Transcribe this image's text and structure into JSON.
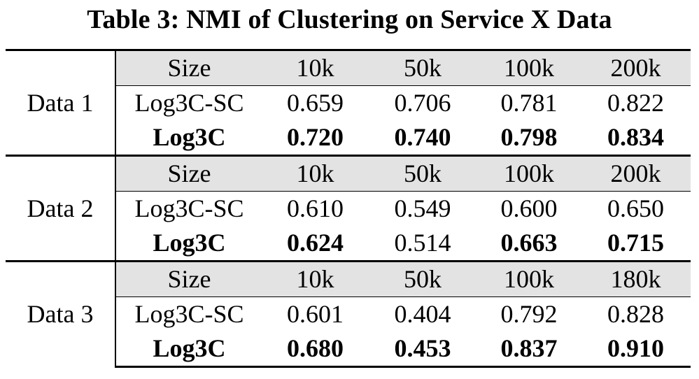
{
  "caption": "Table 3: NMI of Clustering on Service X Data",
  "groups": [
    {
      "label": "Data 1",
      "size_label": "Size",
      "sizes": [
        "10k",
        "50k",
        "100k",
        "200k"
      ],
      "rows": [
        {
          "method": "Log3C-SC",
          "method_bold": false,
          "values": [
            "0.659",
            "0.706",
            "0.781",
            "0.822"
          ],
          "bold": [
            false,
            false,
            false,
            false
          ]
        },
        {
          "method": "Log3C",
          "method_bold": true,
          "values": [
            "0.720",
            "0.740",
            "0.798",
            "0.834"
          ],
          "bold": [
            true,
            true,
            true,
            true
          ]
        }
      ]
    },
    {
      "label": "Data 2",
      "size_label": "Size",
      "sizes": [
        "10k",
        "50k",
        "100k",
        "200k"
      ],
      "rows": [
        {
          "method": "Log3C-SC",
          "method_bold": false,
          "values": [
            "0.610",
            "0.549",
            "0.600",
            "0.650"
          ],
          "bold": [
            false,
            false,
            false,
            false
          ]
        },
        {
          "method": "Log3C",
          "method_bold": true,
          "values": [
            "0.624",
            "0.514",
            "0.663",
            "0.715"
          ],
          "bold": [
            true,
            false,
            true,
            true
          ]
        }
      ]
    },
    {
      "label": "Data 3",
      "size_label": "Size",
      "sizes": [
        "10k",
        "50k",
        "100k",
        "180k"
      ],
      "rows": [
        {
          "method": "Log3C-SC",
          "method_bold": false,
          "values": [
            "0.601",
            "0.404",
            "0.792",
            "0.828"
          ],
          "bold": [
            false,
            false,
            false,
            false
          ]
        },
        {
          "method": "Log3C",
          "method_bold": true,
          "values": [
            "0.680",
            "0.453",
            "0.837",
            "0.910"
          ],
          "bold": [
            true,
            true,
            true,
            true
          ]
        }
      ]
    }
  ],
  "colors": {
    "size_row_bg": "#e3e3e3",
    "rule": "#000000"
  }
}
